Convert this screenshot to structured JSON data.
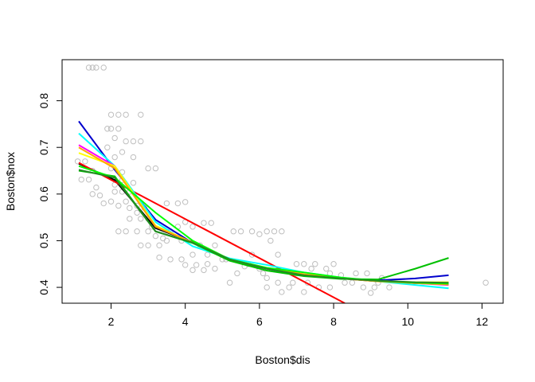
{
  "chart_data": {
    "type": "scatter",
    "title": "",
    "xlabel": "Boston$dis",
    "ylabel": "Boston$nox",
    "xlim": [
      0.68,
      12.57
    ],
    "ylim": [
      0.366,
      0.888
    ],
    "xticks": [
      2,
      4,
      6,
      8,
      10,
      12
    ],
    "yticks": [
      0.4,
      0.5,
      0.6,
      0.7,
      0.8
    ],
    "grid": false,
    "legend": "none",
    "point_color": "#BEBEBE",
    "points": [
      [
        1.4,
        0.871
      ],
      [
        1.5,
        0.871
      ],
      [
        1.6,
        0.871
      ],
      [
        1.8,
        0.871
      ],
      [
        1.1,
        0.67
      ],
      [
        1.3,
        0.67
      ],
      [
        1.5,
        0.65
      ],
      [
        1.2,
        0.631
      ],
      [
        1.4,
        0.631
      ],
      [
        1.6,
        0.614
      ],
      [
        1.5,
        0.6
      ],
      [
        1.7,
        0.597
      ],
      [
        1.8,
        0.58
      ],
      [
        1.9,
        0.74
      ],
      [
        2.0,
        0.74
      ],
      [
        2.2,
        0.74
      ],
      [
        2.0,
        0.77
      ],
      [
        2.2,
        0.77
      ],
      [
        2.4,
        0.77
      ],
      [
        2.8,
        0.77
      ],
      [
        2.1,
        0.72
      ],
      [
        2.4,
        0.713
      ],
      [
        2.6,
        0.713
      ],
      [
        2.8,
        0.713
      ],
      [
        1.9,
        0.7
      ],
      [
        2.3,
        0.69
      ],
      [
        2.1,
        0.679
      ],
      [
        2.6,
        0.679
      ],
      [
        2.0,
        0.655
      ],
      [
        2.3,
        0.647
      ],
      [
        2.6,
        0.624
      ],
      [
        2.1,
        0.605
      ],
      [
        2.3,
        0.605
      ],
      [
        2.5,
        0.605
      ],
      [
        2.0,
        0.584
      ],
      [
        2.4,
        0.584
      ],
      [
        2.2,
        0.575
      ],
      [
        2.5,
        0.57
      ],
      [
        2.7,
        0.575
      ],
      [
        3.0,
        0.655
      ],
      [
        3.2,
        0.655
      ],
      [
        2.2,
        0.52
      ],
      [
        2.4,
        0.52
      ],
      [
        2.5,
        0.547
      ],
      [
        2.8,
        0.547
      ],
      [
        3.0,
        0.547
      ],
      [
        2.7,
        0.52
      ],
      [
        3.0,
        0.52
      ],
      [
        3.2,
        0.51
      ],
      [
        2.8,
        0.49
      ],
      [
        3.0,
        0.49
      ],
      [
        3.3,
        0.49
      ],
      [
        3.4,
        0.505
      ],
      [
        3.5,
        0.5
      ],
      [
        3.8,
        0.53
      ],
      [
        4.0,
        0.54
      ],
      [
        4.2,
        0.53
      ],
      [
        3.3,
        0.464
      ],
      [
        3.6,
        0.46
      ],
      [
        3.9,
        0.46
      ],
      [
        4.0,
        0.448
      ],
      [
        4.3,
        0.448
      ],
      [
        3.5,
        0.58
      ],
      [
        3.8,
        0.58
      ],
      [
        4.0,
        0.583
      ],
      [
        4.5,
        0.538
      ],
      [
        4.7,
        0.538
      ],
      [
        4.4,
        0.49
      ],
      [
        4.8,
        0.49
      ],
      [
        4.6,
        0.47
      ],
      [
        4.2,
        0.437
      ],
      [
        4.5,
        0.437
      ],
      [
        4.8,
        0.44
      ],
      [
        5.0,
        0.46
      ],
      [
        5.2,
        0.41
      ],
      [
        5.4,
        0.43
      ],
      [
        5.6,
        0.445
      ],
      [
        5.3,
        0.52
      ],
      [
        5.5,
        0.52
      ],
      [
        5.8,
        0.52
      ],
      [
        6.0,
        0.514
      ],
      [
        6.2,
        0.52
      ],
      [
        6.4,
        0.52
      ],
      [
        6.6,
        0.52
      ],
      [
        6.3,
        0.5
      ],
      [
        6.5,
        0.47
      ],
      [
        5.8,
        0.47
      ],
      [
        6.0,
        0.44
      ],
      [
        6.2,
        0.42
      ],
      [
        6.5,
        0.41
      ],
      [
        6.8,
        0.4
      ],
      [
        6.2,
        0.4
      ],
      [
        6.6,
        0.39
      ],
      [
        7.0,
        0.45
      ],
      [
        7.2,
        0.45
      ],
      [
        7.5,
        0.45
      ],
      [
        7.0,
        0.43
      ],
      [
        7.3,
        0.41
      ],
      [
        7.6,
        0.4
      ],
      [
        7.9,
        0.4
      ],
      [
        7.4,
        0.44
      ],
      [
        7.8,
        0.44
      ],
      [
        8.0,
        0.45
      ],
      [
        7.9,
        0.43
      ],
      [
        8.2,
        0.426
      ],
      [
        8.5,
        0.41
      ],
      [
        8.8,
        0.4
      ],
      [
        9.0,
        0.388
      ],
      [
        9.1,
        0.4
      ],
      [
        9.2,
        0.41
      ],
      [
        8.6,
        0.43
      ],
      [
        8.9,
        0.43
      ],
      [
        9.3,
        0.42
      ],
      [
        12.1,
        0.41
      ],
      [
        2.1,
        0.62
      ],
      [
        2.3,
        0.63
      ],
      [
        2.7,
        0.56
      ],
      [
        2.9,
        0.57
      ],
      [
        3.1,
        0.53
      ],
      [
        3.6,
        0.52
      ],
      [
        3.9,
        0.5
      ],
      [
        4.2,
        0.47
      ],
      [
        4.6,
        0.45
      ],
      [
        5.1,
        0.46
      ],
      [
        5.7,
        0.45
      ],
      [
        6.1,
        0.43
      ],
      [
        6.9,
        0.41
      ],
      [
        7.2,
        0.39
      ],
      [
        8.3,
        0.41
      ],
      [
        9.5,
        0.4
      ]
    ],
    "series": [
      {
        "color": "#000000",
        "x": [
          1.13,
          2.1,
          3.2,
          4.2,
          5.2,
          6.2,
          7.2,
          8.2,
          9.2,
          10.2,
          11.1
        ],
        "y": [
          0.665,
          0.63,
          0.527,
          0.497,
          0.458,
          0.44,
          0.427,
          0.419,
          0.413,
          0.409,
          0.406
        ]
      },
      {
        "color": "#FF0000",
        "x": [
          1.13,
          8.3
        ],
        "y": [
          0.667,
          0.366
        ]
      },
      {
        "color": "#0000CD",
        "x": [
          1.13,
          2.1,
          3.2,
          4.2,
          5.2,
          6.2,
          7.2,
          8.2,
          9.2,
          10.2,
          11.1
        ],
        "y": [
          0.756,
          0.652,
          0.545,
          0.495,
          0.46,
          0.44,
          0.425,
          0.419,
          0.415,
          0.419,
          0.426
        ]
      },
      {
        "color": "#00FFFF",
        "x": [
          1.13,
          2.1,
          3.2,
          4.2,
          5.2,
          6.2,
          7.2,
          8.2,
          9.2,
          10.2,
          11.1
        ],
        "y": [
          0.73,
          0.66,
          0.54,
          0.488,
          0.462,
          0.448,
          0.432,
          0.421,
          0.413,
          0.405,
          0.398
        ]
      },
      {
        "color": "#FF00FF",
        "x": [
          1.13,
          2.1,
          3.2,
          4.2,
          5.2,
          6.2,
          7.2,
          8.2,
          9.2,
          10.2,
          11.1
        ],
        "y": [
          0.705,
          0.66,
          0.53,
          0.496,
          0.46,
          0.44,
          0.428,
          0.419,
          0.414,
          0.409,
          0.405
        ]
      },
      {
        "color": "#FFFF00",
        "x": [
          1.13,
          2.1,
          3.2,
          4.2,
          5.2,
          6.2,
          7.2,
          8.2,
          9.2,
          10.2,
          11.1
        ],
        "y": [
          0.688,
          0.66,
          0.532,
          0.496,
          0.46,
          0.442,
          0.428,
          0.42,
          0.414,
          0.411,
          0.411
        ]
      },
      {
        "color": "#FFA500",
        "x": [
          1.13,
          2.1,
          3.2,
          4.2,
          5.2,
          6.2,
          7.2,
          8.2,
          9.2,
          10.2,
          11.1
        ],
        "y": [
          0.7,
          0.655,
          0.53,
          0.496,
          0.459,
          0.441,
          0.428,
          0.419,
          0.413,
          0.409,
          0.406
        ]
      },
      {
        "color": "#00C000",
        "x": [
          1.13,
          2.1,
          3.2,
          4.2,
          5.2,
          6.2,
          7.2,
          8.2,
          9.2,
          10.2,
          11.1
        ],
        "y": [
          0.65,
          0.638,
          0.52,
          0.495,
          0.457,
          0.436,
          0.424,
          0.418,
          0.417,
          0.44,
          0.463
        ]
      },
      {
        "color": "#00FF00",
        "x": [
          1.13,
          2.1,
          3.2,
          4.2,
          5.2,
          6.2,
          7.2,
          8.2,
          9.2,
          10.2,
          11.1
        ],
        "y": [
          0.66,
          0.635,
          0.56,
          0.5,
          0.46,
          0.442,
          0.432,
          0.421,
          0.414,
          0.41,
          0.408
        ]
      },
      {
        "color": "#228B22",
        "x": [
          1.13,
          2.1,
          3.2,
          4.2,
          5.2,
          6.2,
          7.2,
          8.2,
          9.2,
          10.2,
          11.1
        ],
        "y": [
          0.652,
          0.635,
          0.52,
          0.496,
          0.46,
          0.44,
          0.426,
          0.419,
          0.414,
          0.411,
          0.41
        ]
      }
    ]
  }
}
